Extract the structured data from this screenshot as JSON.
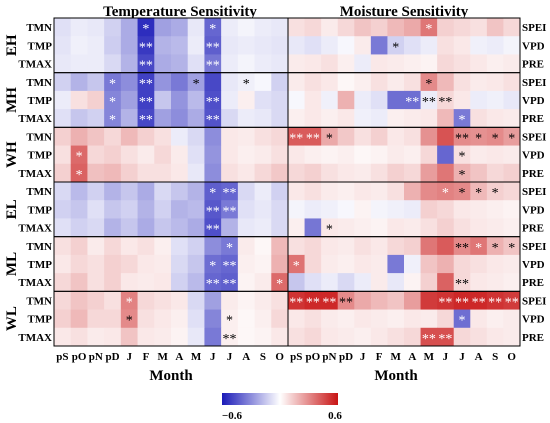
{
  "chart_data": {
    "type": "heatmap",
    "panels": [
      {
        "title": "Temperature Sensitivity",
        "xlabel": "Month",
        "months": [
          "pS",
          "pO",
          "pN",
          "pD",
          "J",
          "F",
          "M",
          "A",
          "M",
          "J",
          "J",
          "A",
          "S",
          "O"
        ]
      },
      {
        "title": "Moisture Sensitivity",
        "xlabel": "Month",
        "months": [
          "pS",
          "pO",
          "pN",
          "pD",
          "J",
          "F",
          "M",
          "A",
          "M",
          "J",
          "J",
          "A",
          "S",
          "O"
        ]
      }
    ],
    "groups": [
      "EH",
      "MH",
      "WH",
      "EL",
      "ML",
      "WL"
    ],
    "left_rows": [
      "TMN",
      "TMP",
      "TMAX"
    ],
    "right_rows": [
      "SPEI",
      "VPD",
      "PRE"
    ],
    "colorbar": {
      "min": -0.6,
      "max": 0.6,
      "min_label": "−0.6",
      "max_label": "0.6",
      "neg_color": "#1a1ab8",
      "mid_color": "#ffffff",
      "pos_color": "#c81414"
    },
    "temperature": [
      [
        -0.08,
        -0.05,
        -0.06,
        -0.12,
        -0.22,
        -0.55,
        -0.25,
        -0.22,
        -0.06,
        -0.4,
        -0.05,
        -0.03,
        -0.05,
        -0.06
      ],
      [
        -0.07,
        -0.04,
        -0.05,
        -0.13,
        -0.22,
        -0.52,
        -0.2,
        -0.18,
        -0.05,
        -0.42,
        -0.06,
        -0.05,
        -0.06,
        -0.07
      ],
      [
        -0.06,
        -0.05,
        -0.05,
        -0.1,
        -0.2,
        -0.48,
        -0.22,
        -0.2,
        -0.08,
        -0.36,
        -0.05,
        -0.03,
        -0.05,
        -0.06
      ],
      [
        -0.12,
        -0.2,
        -0.15,
        -0.35,
        -0.3,
        -0.5,
        -0.28,
        -0.35,
        -0.25,
        -0.48,
        -0.06,
        -0.04,
        -0.02,
        -0.12
      ],
      [
        -0.05,
        0.08,
        0.12,
        -0.32,
        -0.25,
        -0.5,
        -0.15,
        -0.28,
        -0.18,
        -0.46,
        -0.05,
        0.04,
        -0.08,
        -0.1
      ],
      [
        -0.08,
        -0.15,
        -0.12,
        -0.32,
        -0.2,
        -0.48,
        -0.25,
        -0.3,
        -0.22,
        -0.45,
        -0.1,
        -0.05,
        -0.06,
        -0.1
      ],
      [
        0.12,
        0.2,
        0.15,
        0.1,
        0.18,
        0.12,
        0.08,
        -0.05,
        -0.1,
        -0.3,
        0.06,
        0.05,
        0.08,
        0.1
      ],
      [
        0.08,
        0.38,
        0.1,
        0.12,
        0.08,
        0.05,
        0.1,
        0.05,
        -0.08,
        -0.28,
        0.06,
        0.04,
        0.05,
        0.08
      ],
      [
        0.12,
        0.4,
        0.16,
        0.18,
        0.12,
        0.08,
        0.08,
        0.06,
        -0.06,
        -0.3,
        0.08,
        0.06,
        0.1,
        0.14
      ],
      [
        -0.1,
        -0.18,
        -0.12,
        -0.2,
        -0.15,
        -0.22,
        -0.1,
        -0.15,
        -0.2,
        -0.42,
        -0.4,
        -0.1,
        -0.05,
        -0.12
      ],
      [
        -0.12,
        -0.15,
        -0.08,
        -0.15,
        -0.12,
        -0.2,
        -0.12,
        -0.2,
        -0.18,
        -0.44,
        -0.35,
        -0.08,
        -0.06,
        -0.1
      ],
      [
        -0.08,
        -0.12,
        -0.1,
        -0.2,
        -0.15,
        -0.22,
        -0.15,
        -0.18,
        -0.22,
        -0.46,
        -0.2,
        -0.06,
        -0.05,
        -0.1
      ],
      [
        0.08,
        0.12,
        0.05,
        0.1,
        0.06,
        0.08,
        0.04,
        -0.08,
        -0.12,
        -0.3,
        -0.35,
        0.05,
        0.02,
        0.18
      ],
      [
        0.06,
        0.1,
        0.08,
        0.12,
        0.1,
        0.06,
        0.05,
        -0.1,
        -0.15,
        -0.38,
        -0.4,
        0.04,
        0.03,
        0.2
      ],
      [
        0.1,
        0.15,
        0.08,
        0.12,
        0.06,
        0.05,
        0.06,
        -0.12,
        -0.18,
        -0.4,
        -0.42,
        0.03,
        0.05,
        0.38
      ],
      [
        0.1,
        0.15,
        0.12,
        0.08,
        0.32,
        0.1,
        0.08,
        0.06,
        -0.1,
        -0.25,
        0.05,
        0.03,
        0.05,
        0.08
      ],
      [
        0.12,
        0.18,
        0.1,
        0.1,
        0.3,
        0.08,
        0.06,
        0.04,
        -0.08,
        -0.32,
        0.04,
        0.02,
        0.04,
        0.1
      ],
      [
        0.06,
        0.08,
        0.05,
        0.06,
        0.15,
        0.06,
        0.05,
        0.03,
        -0.06,
        -0.35,
        0.04,
        0.02,
        0.03,
        0.06
      ]
    ],
    "moisture": [
      [
        0.08,
        0.1,
        0.05,
        0.1,
        0.15,
        0.12,
        0.18,
        0.22,
        0.35,
        0.12,
        0.1,
        0.08,
        0.15,
        0.1
      ],
      [
        -0.06,
        -0.08,
        -0.05,
        -0.02,
        0.05,
        -0.35,
        -0.12,
        -0.08,
        -0.05,
        0.08,
        0.06,
        -0.04,
        -0.05,
        -0.03
      ],
      [
        0.05,
        0.06,
        0.08,
        0.04,
        -0.05,
        0.06,
        0.05,
        0.04,
        0.03,
        0.1,
        0.08,
        0.06,
        0.04,
        0.05
      ],
      [
        0.05,
        0.08,
        0.06,
        0.02,
        0.04,
        0.08,
        0.05,
        0.08,
        0.3,
        0.18,
        0.08,
        0.05,
        0.06,
        0.08
      ],
      [
        -0.02,
        0.06,
        -0.04,
        0.2,
        -0.05,
        -0.08,
        -0.38,
        -0.38,
        -0.05,
        0.1,
        0.06,
        -0.05,
        -0.04,
        -0.06
      ],
      [
        0.04,
        0.06,
        0.04,
        0.06,
        -0.04,
        -0.05,
        0.04,
        0.05,
        0.06,
        0.18,
        -0.35,
        0.08,
        0.06,
        0.05
      ],
      [
        0.42,
        0.42,
        0.22,
        0.14,
        0.08,
        0.12,
        0.06,
        0.08,
        0.28,
        0.44,
        0.3,
        0.28,
        0.3,
        0.25
      ],
      [
        0.06,
        0.04,
        0.03,
        0.04,
        0.02,
        0.03,
        0.05,
        0.04,
        0.1,
        -0.4,
        0.08,
        0.05,
        0.06,
        0.05
      ],
      [
        0.1,
        0.12,
        0.08,
        0.06,
        0.05,
        0.08,
        0.12,
        0.1,
        0.25,
        0.35,
        0.2,
        0.15,
        0.1,
        0.12
      ],
      [
        0.06,
        0.08,
        0.05,
        0.04,
        0.06,
        0.05,
        0.08,
        0.2,
        0.3,
        0.32,
        0.3,
        0.18,
        0.12,
        0.1
      ],
      [
        -0.03,
        -0.05,
        -0.04,
        -0.02,
        0.03,
        -0.03,
        -0.04,
        -0.05,
        0.12,
        0.1,
        0.06,
        0.05,
        0.04,
        0.03
      ],
      [
        0.04,
        -0.36,
        0.06,
        0.05,
        0.04,
        0.03,
        0.06,
        0.05,
        0.08,
        0.12,
        0.08,
        0.06,
        0.05,
        0.04
      ],
      [
        0.08,
        0.1,
        0.06,
        0.05,
        0.08,
        0.06,
        0.1,
        0.12,
        0.35,
        0.42,
        0.3,
        0.35,
        0.2,
        0.15
      ],
      [
        0.36,
        0.1,
        0.05,
        0.04,
        0.06,
        0.05,
        -0.35,
        -0.04,
        0.15,
        0.2,
        0.1,
        0.08,
        0.06,
        0.05
      ],
      [
        -0.15,
        -0.08,
        -0.05,
        -0.1,
        -0.05,
        0.05,
        -0.06,
        0.03,
        0.12,
        0.4,
        0.1,
        0.06,
        0.05,
        0.04
      ],
      [
        0.52,
        0.55,
        0.55,
        0.3,
        0.22,
        0.18,
        0.15,
        0.25,
        0.5,
        0.52,
        0.55,
        0.55,
        0.52,
        0.5
      ],
      [
        0.06,
        0.08,
        0.05,
        0.04,
        0.06,
        0.05,
        0.04,
        0.06,
        0.05,
        0.1,
        -0.38,
        0.06,
        0.04,
        0.05
      ],
      [
        0.08,
        0.1,
        0.06,
        0.05,
        0.04,
        0.06,
        0.08,
        0.1,
        0.45,
        0.45,
        0.1,
        0.08,
        0.06,
        0.05
      ]
    ],
    "temperature_sig": [
      "00000100010000",
      "00000200020000",
      "00000200020000",
      "00010200100100",
      "00010200020000",
      "00010200020000",
      "00000000000000",
      "01000000000000",
      "01000000000000",
      "00000000012000",
      "00000000022000",
      "00000000020000",
      "00000000001000",
      "00000000012000",
      "00000000022001",
      "00001000000000",
      "00001000001000",
      "00000000002000"
    ],
    "moisture_sig": [
      "00000000100000",
      "00000010000000",
      "00000000000000",
      "00000000100000",
      "00000002220000",
      "00000000001000",
      "22100000002111",
      "00000000001000",
      "00000000001000",
      "00000000011110",
      "00000000000000",
      "00100000000000",
      "00000000002111",
      "10000000000000",
      "00000000002000",
      "22220000022222",
      "00000000001000",
      "00000000220000"
    ],
    "sig_star": "*",
    "sig_double_star": "**"
  }
}
